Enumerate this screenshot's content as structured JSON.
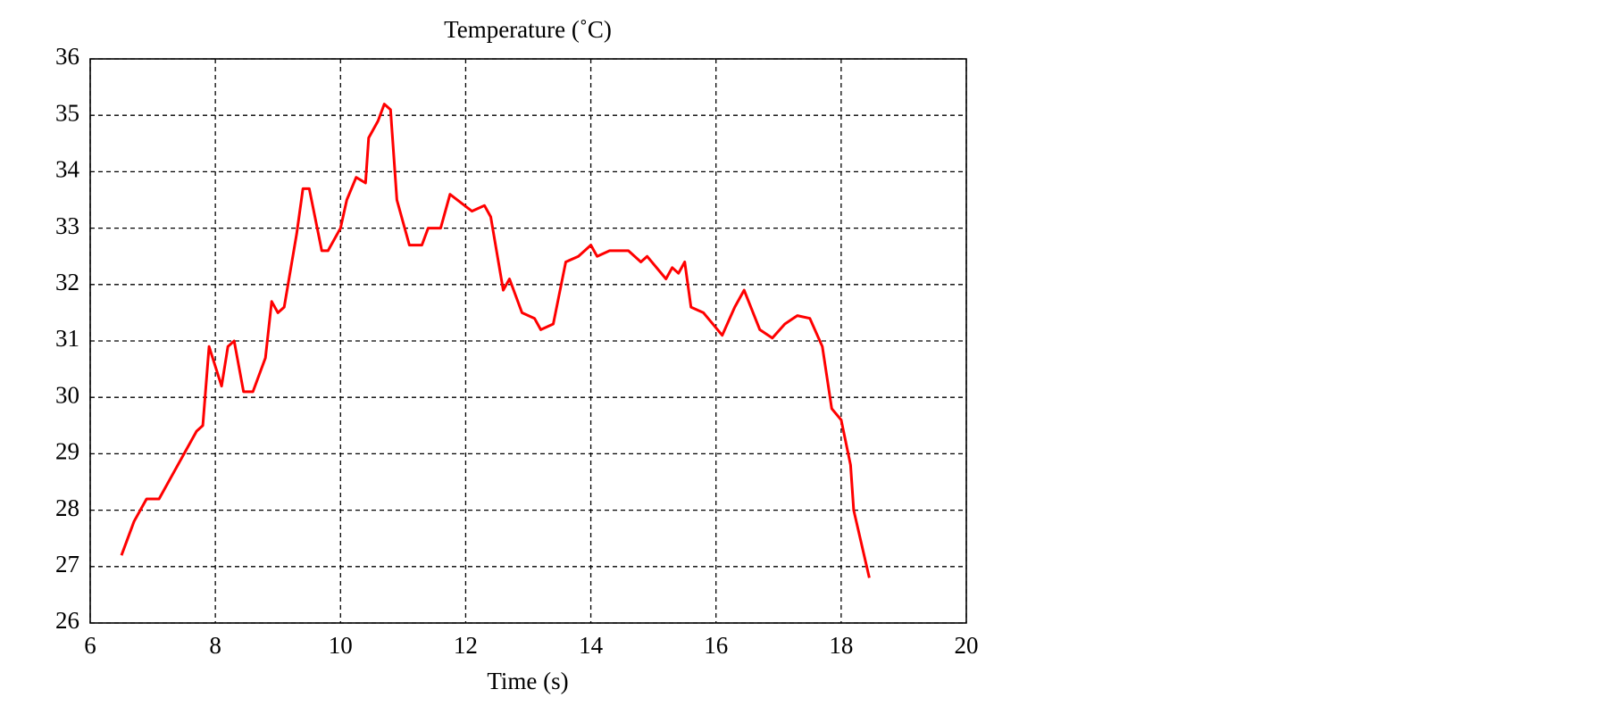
{
  "chart_data": {
    "type": "line",
    "title": "Temperature (˚C)",
    "x_label": "Time (s)",
    "color": "#ff0000",
    "x": [
      6.5,
      6.7,
      6.9,
      7.1,
      7.3,
      7.5,
      7.7,
      7.8,
      7.9,
      8.1,
      8.2,
      8.3,
      8.45,
      8.6,
      8.8,
      8.9,
      9.0,
      9.1,
      9.3,
      9.4,
      9.5,
      9.7,
      9.8,
      10.0,
      10.1,
      10.25,
      10.4,
      10.45,
      10.6,
      10.7,
      10.8,
      10.9,
      11.1,
      11.3,
      11.4,
      11.6,
      11.75,
      12.1,
      12.3,
      12.4,
      12.6,
      12.7,
      12.9,
      13.1,
      13.2,
      13.4,
      13.6,
      13.8,
      14.0,
      14.1,
      14.3,
      14.6,
      14.8,
      14.9,
      15.2,
      15.3,
      15.4,
      15.5,
      15.6,
      15.8,
      16.1,
      16.3,
      16.45,
      16.7,
      16.9,
      17.1,
      17.3,
      17.5,
      17.7,
      17.85,
      18.0,
      18.15,
      18.2,
      18.45
    ],
    "values": [
      27.2,
      27.8,
      28.2,
      28.2,
      28.6,
      29.0,
      29.4,
      29.5,
      30.9,
      30.2,
      30.9,
      31.0,
      30.1,
      30.1,
      30.7,
      31.7,
      31.5,
      31.6,
      32.9,
      33.7,
      33.7,
      32.6,
      32.6,
      33.0,
      33.5,
      33.9,
      33.8,
      34.6,
      34.9,
      35.2,
      35.1,
      33.5,
      32.7,
      32.7,
      33.0,
      33.0,
      33.6,
      33.3,
      33.4,
      33.2,
      31.9,
      32.1,
      31.5,
      31.4,
      31.2,
      31.3,
      32.4,
      32.5,
      32.7,
      32.5,
      32.6,
      32.6,
      32.4,
      32.5,
      32.1,
      32.3,
      32.2,
      32.4,
      31.6,
      31.5,
      31.1,
      31.6,
      31.9,
      31.2,
      31.05,
      31.3,
      31.45,
      31.4,
      30.9,
      29.8,
      29.6,
      28.8,
      28.0,
      26.8
    ],
    "xlim": [
      6,
      20
    ],
    "xticks": [
      6,
      8,
      10,
      12,
      14,
      16,
      18,
      20
    ],
    "ylim": [
      26,
      36
    ],
    "yticks": [
      26,
      27,
      28,
      29,
      30,
      31,
      32,
      33,
      34,
      35,
      36
    ],
    "grid": true
  }
}
